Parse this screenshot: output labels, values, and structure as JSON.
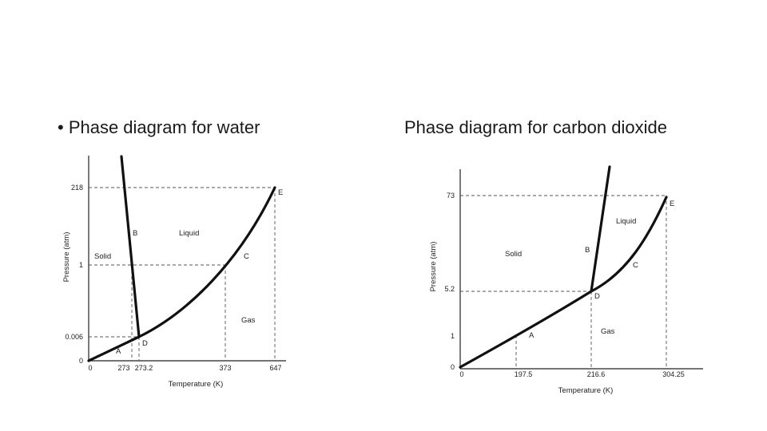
{
  "slide": {
    "left_heading": "• Phase diagram for water",
    "right_heading": "Phase diagram for carbon dioxide"
  },
  "water": {
    "y_axis_label": "Pressure (atm)",
    "x_axis_label": "Temperature (K)",
    "y_ticks": [
      "218",
      "1",
      "0.006",
      "0"
    ],
    "x_ticks": [
      "0",
      "273",
      "273.2",
      "373",
      "647"
    ],
    "regions": {
      "solid": "Solid",
      "liquid": "Liquid",
      "gas": "Gas"
    },
    "points": {
      "a": "A",
      "b": "B",
      "c": "C",
      "d": "D",
      "e": "E"
    }
  },
  "co2": {
    "y_axis_label": "Pressure (atm)",
    "x_axis_label": "Temperature (K)",
    "y_ticks": [
      "73",
      "5.2",
      "1",
      "0"
    ],
    "x_ticks": [
      "0",
      "197.5",
      "216.6",
      "304.25"
    ],
    "regions": {
      "solid": "Solid",
      "liquid": "Liquid",
      "gas": "Gas"
    },
    "points": {
      "a": "A",
      "b": "B",
      "c": "C",
      "d": "D",
      "e": "E"
    }
  }
}
